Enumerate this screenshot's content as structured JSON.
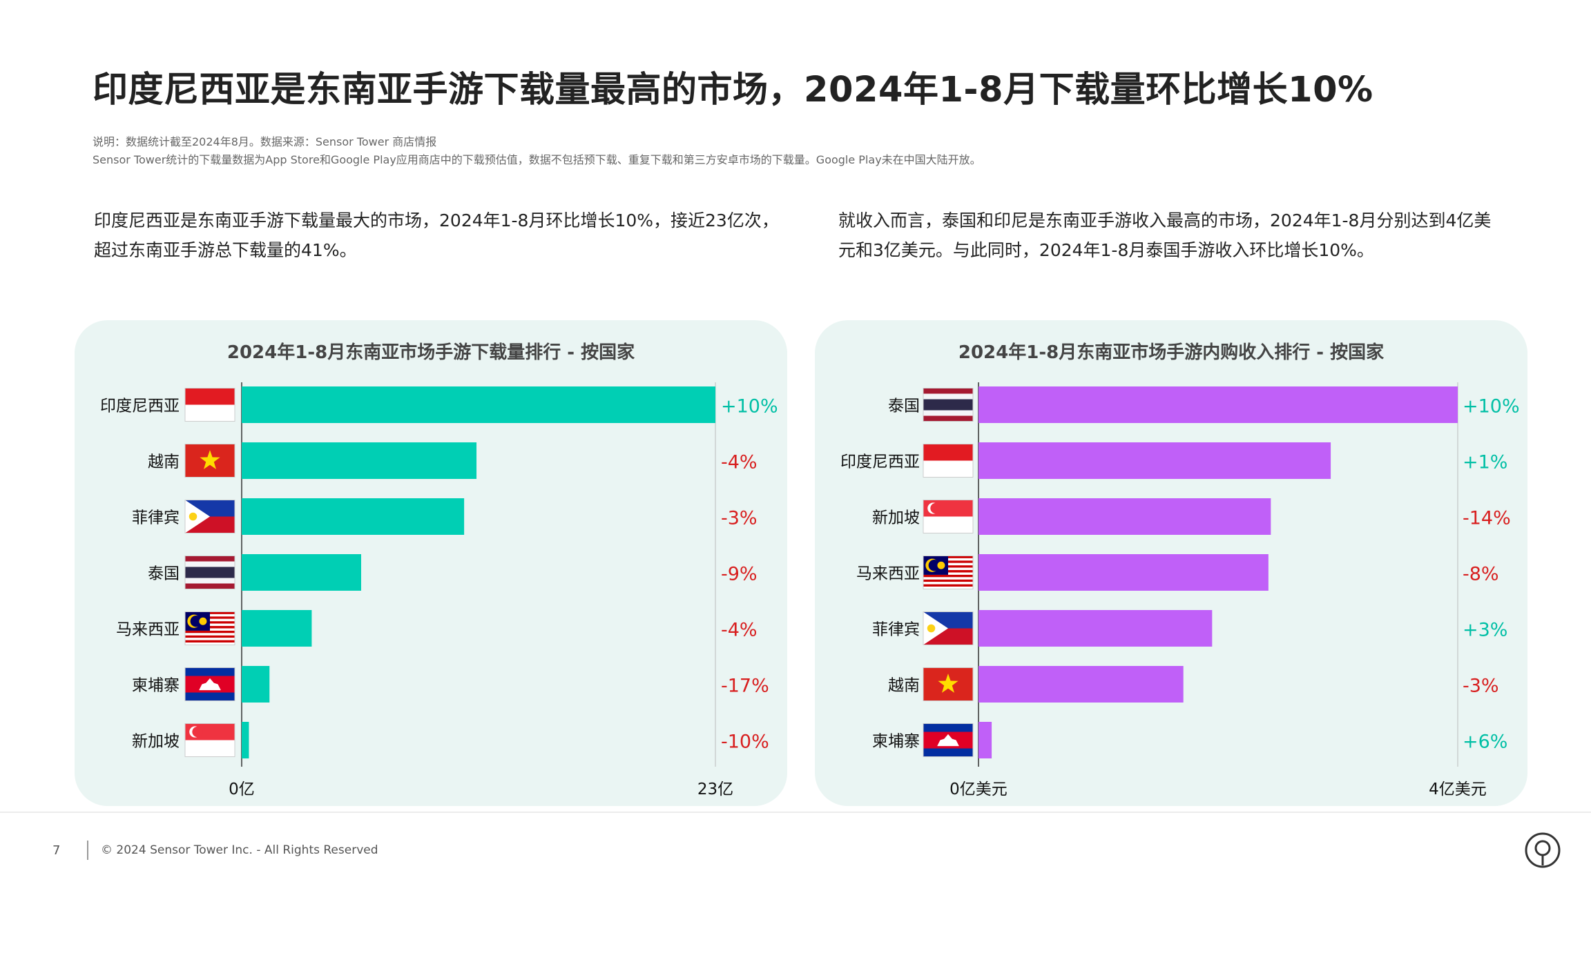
{
  "title": "印度尼西亚是东南亚手游下载量最高的市场，2024年1-8月下载量环比增长10%",
  "notes": {
    "line1": "说明：数据统计截至2024年8月。数据来源：Sensor Tower 商店情报",
    "line2": "Sensor Tower统计的下载量数据为App Store和Google Play应用商店中的下载预估值，数据不包括预下载、重复下载和第三方安卓市场的下载量。Google Play未在中国大陆开放。"
  },
  "paragraphs": {
    "left_line1": "印度尼西亚是东南亚手游下载量最大的市场，2024年1-8月环比增长10%，接近23亿次，",
    "left_line2": "超过东南亚手游总下载量的41%。",
    "right_line1": "就收入而言，泰国和印尼是东南亚手游收入最高的市场，2024年1-8月分别达到4亿美",
    "right_line2": "元和3亿美元。与此同时，2024年1-8月泰国手游收入环比增长10%。"
  },
  "colors": {
    "downloads_bar": "#00cfb4",
    "revenue_bar": "#c060f8",
    "positive": "#00bfa5",
    "negative": "#d81e1e",
    "panel_bg": "#eaf5f3"
  },
  "chart_data": [
    {
      "type": "bar",
      "orientation": "horizontal",
      "title": "2024年1-8月东南亚市场手游下载量排行 - 按国家",
      "categories": [
        "印度尼西亚",
        "越南",
        "菲律宾",
        "泰国",
        "马来西亚",
        "柬埔寨",
        "新加坡"
      ],
      "flags": [
        "indonesia",
        "vietnam",
        "philippines",
        "thailand",
        "malaysia",
        "cambodia",
        "singapore"
      ],
      "values": [
        23,
        11.4,
        10.8,
        5.8,
        3.4,
        1.35,
        0.35
      ],
      "changes": [
        "+10%",
        "-4%",
        "-3%",
        "-9%",
        "-4%",
        "-17%",
        "-10%"
      ],
      "xlim": [
        0,
        23
      ],
      "xtick_labels": [
        "0亿",
        "23亿"
      ],
      "bar_color": "#00cfb4"
    },
    {
      "type": "bar",
      "orientation": "horizontal",
      "title": "2024年1-8月东南亚市场手游内购收入排行 - 按国家",
      "categories": [
        "泰国",
        "印度尼西亚",
        "新加坡",
        "马来西亚",
        "菲律宾",
        "越南",
        "柬埔寨"
      ],
      "flags": [
        "thailand",
        "indonesia",
        "singapore",
        "malaysia",
        "philippines",
        "vietnam",
        "cambodia"
      ],
      "values": [
        4,
        2.94,
        2.44,
        2.42,
        1.95,
        1.71,
        0.11
      ],
      "changes": [
        "+10%",
        "+1%",
        "-14%",
        "-8%",
        "+3%",
        "-3%",
        "+6%"
      ],
      "xlim": [
        0,
        4
      ],
      "xtick_labels": [
        "0亿美元",
        "4亿美元"
      ],
      "bar_color": "#c060f8"
    }
  ],
  "footer": {
    "page_number": "7",
    "copyright": "© 2024 Sensor Tower Inc. - All Rights Reserved"
  }
}
